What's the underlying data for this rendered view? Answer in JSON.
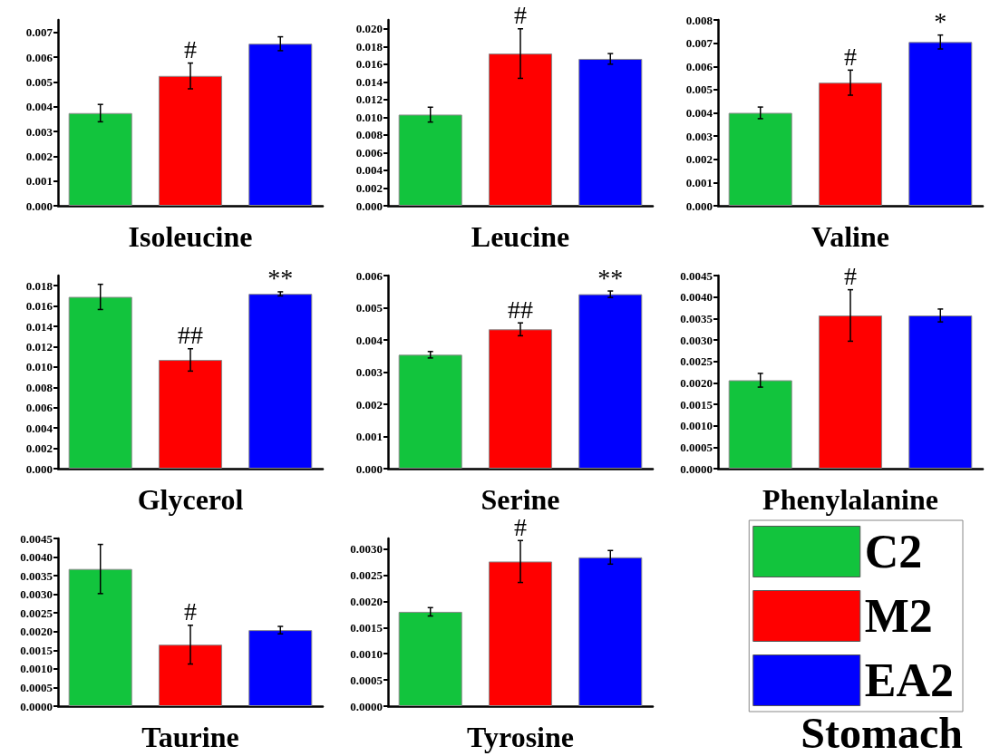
{
  "chart_data": [
    {
      "type": "bar",
      "xlabel": "Isoleucine",
      "categories": [
        null
      ],
      "legend": false,
      "ylim": [
        0,
        0.0075
      ],
      "yticks": [
        {
          "value": 0,
          "label": "0.000"
        },
        {
          "value": 0.001,
          "label": "0.001"
        },
        {
          "value": 0.002,
          "label": "0.002"
        },
        {
          "value": 0.003,
          "label": "0.003"
        },
        {
          "value": 0.004,
          "label": "0.004"
        },
        {
          "value": 0.005,
          "label": "0.005"
        },
        {
          "value": 0.006,
          "label": "0.006"
        },
        {
          "value": 0.007,
          "label": "0.007"
        }
      ],
      "series": [
        {
          "color": "#12c43d",
          "values": [
            0.00374
          ],
          "errors": [
            0.00035
          ]
        },
        {
          "color": "#ff0000",
          "values": [
            0.00524
          ],
          "errors": [
            0.00052
          ],
          "value_labels": [
            "#"
          ]
        },
        {
          "color": "#0000ff",
          "values": [
            0.00654
          ],
          "errors": [
            0.00028
          ]
        }
      ]
    },
    {
      "type": "bar",
      "xlabel": "Leucine",
      "categories": [
        null
      ],
      "legend": false,
      "ylim": [
        0,
        0.021
      ],
      "yticks": [
        {
          "value": 0,
          "label": "0.000"
        },
        {
          "value": 0.002,
          "label": "0.002"
        },
        {
          "value": 0.004,
          "label": "0.004"
        },
        {
          "value": 0.006,
          "label": "0.006"
        },
        {
          "value": 0.008,
          "label": "0.008"
        },
        {
          "value": 0.01,
          "label": "0.010"
        },
        {
          "value": 0.012,
          "label": "0.012"
        },
        {
          "value": 0.014,
          "label": "0.014"
        },
        {
          "value": 0.016,
          "label": "0.016"
        },
        {
          "value": 0.018,
          "label": "0.018"
        },
        {
          "value": 0.02,
          "label": "0.020"
        }
      ],
      "series": [
        {
          "color": "#12c43d",
          "values": [
            0.0103
          ],
          "errors": [
            0.00084
          ]
        },
        {
          "color": "#ff0000",
          "values": [
            0.0172
          ],
          "errors": [
            0.0028
          ],
          "value_labels": [
            "#"
          ]
        },
        {
          "color": "#0000ff",
          "values": [
            0.0166
          ],
          "errors": [
            0.0006
          ]
        }
      ]
    },
    {
      "type": "bar",
      "xlabel": "Valine",
      "categories": [
        null
      ],
      "legend": false,
      "ylim": [
        0,
        0.008
      ],
      "yticks": [
        {
          "value": 0,
          "label": "0.000"
        },
        {
          "value": 0.001,
          "label": "0.001"
        },
        {
          "value": 0.002,
          "label": "0.002"
        },
        {
          "value": 0.003,
          "label": "0.003"
        },
        {
          "value": 0.004,
          "label": "0.004"
        },
        {
          "value": 0.005,
          "label": "0.005"
        },
        {
          "value": 0.006,
          "label": "0.006"
        },
        {
          "value": 0.007,
          "label": "0.007"
        },
        {
          "value": 0.008,
          "label": "0.008"
        }
      ],
      "series": [
        {
          "color": "#12c43d",
          "values": [
            0.004
          ],
          "errors": [
            0.00025
          ]
        },
        {
          "color": "#ff0000",
          "values": [
            0.0053
          ],
          "errors": [
            0.00054
          ],
          "value_labels": [
            "#"
          ]
        },
        {
          "color": "#0000ff",
          "values": [
            0.00705
          ],
          "errors": [
            0.0003
          ],
          "value_labels": [
            "*"
          ]
        }
      ]
    },
    {
      "type": "bar",
      "xlabel": "Glycerol",
      "categories": [
        null
      ],
      "legend": false,
      "ylim": [
        0,
        0.019
      ],
      "yticks": [
        {
          "value": 0,
          "label": "0.000"
        },
        {
          "value": 0.002,
          "label": "0.002"
        },
        {
          "value": 0.004,
          "label": "0.004"
        },
        {
          "value": 0.006,
          "label": "0.006"
        },
        {
          "value": 0.008,
          "label": "0.008"
        },
        {
          "value": 0.01,
          "label": "0.010"
        },
        {
          "value": 0.012,
          "label": "0.012"
        },
        {
          "value": 0.014,
          "label": "0.014"
        },
        {
          "value": 0.016,
          "label": "0.016"
        },
        {
          "value": 0.018,
          "label": "0.018"
        }
      ],
      "series": [
        {
          "color": "#12c43d",
          "values": [
            0.0169
          ],
          "errors": [
            0.00124
          ]
        },
        {
          "color": "#ff0000",
          "values": [
            0.0107
          ],
          "errors": [
            0.0011
          ],
          "value_labels": [
            "##"
          ]
        },
        {
          "color": "#0000ff",
          "values": [
            0.0172
          ],
          "errors": [
            0.0002
          ],
          "value_labels": [
            "**"
          ]
        }
      ]
    },
    {
      "type": "bar",
      "xlabel": "Serine",
      "categories": [
        null
      ],
      "legend": false,
      "ylim": [
        0,
        0.006
      ],
      "yticks": [
        {
          "value": 0,
          "label": "0.000"
        },
        {
          "value": 0.001,
          "label": "0.001"
        },
        {
          "value": 0.002,
          "label": "0.002"
        },
        {
          "value": 0.003,
          "label": "0.003"
        },
        {
          "value": 0.004,
          "label": "0.004"
        },
        {
          "value": 0.005,
          "label": "0.005"
        },
        {
          "value": 0.006,
          "label": "0.006"
        }
      ],
      "series": [
        {
          "color": "#12c43d",
          "values": [
            0.00354
          ],
          "errors": [
            0.0001
          ]
        },
        {
          "color": "#ff0000",
          "values": [
            0.00433
          ],
          "errors": [
            0.0002
          ],
          "value_labels": [
            "##"
          ]
        },
        {
          "color": "#0000ff",
          "values": [
            0.00542
          ],
          "errors": [
            0.0001
          ],
          "value_labels": [
            "**"
          ]
        }
      ]
    },
    {
      "type": "bar",
      "xlabel": "Phenylalanine",
      "categories": [
        null
      ],
      "legend": false,
      "ylim": [
        0,
        0.0045
      ],
      "yticks": [
        {
          "value": 0,
          "label": "0.0000"
        },
        {
          "value": 0.0005,
          "label": "0.0005"
        },
        {
          "value": 0.001,
          "label": "0.0010"
        },
        {
          "value": 0.0015,
          "label": "0.0015"
        },
        {
          "value": 0.002,
          "label": "0.0020"
        },
        {
          "value": 0.0025,
          "label": "0.0025"
        },
        {
          "value": 0.003,
          "label": "0.0030"
        },
        {
          "value": 0.0035,
          "label": "0.0035"
        },
        {
          "value": 0.004,
          "label": "0.0040"
        },
        {
          "value": 0.0045,
          "label": "0.0045"
        }
      ],
      "series": [
        {
          "color": "#12c43d",
          "values": [
            0.00206
          ],
          "errors": [
            0.00016
          ]
        },
        {
          "color": "#ff0000",
          "values": [
            0.00357
          ],
          "errors": [
            0.0006
          ],
          "value_labels": [
            "#"
          ]
        },
        {
          "color": "#0000ff",
          "values": [
            0.00357
          ],
          "errors": [
            0.00015
          ]
        }
      ]
    },
    {
      "type": "bar",
      "xlabel": "Taurine",
      "categories": [
        null
      ],
      "legend": false,
      "ylim": [
        0,
        0.0045
      ],
      "yticks": [
        {
          "value": 0,
          "label": "0.0000"
        },
        {
          "value": 0.0005,
          "label": "0.0005"
        },
        {
          "value": 0.001,
          "label": "0.0010"
        },
        {
          "value": 0.0015,
          "label": "0.0015"
        },
        {
          "value": 0.002,
          "label": "0.0020"
        },
        {
          "value": 0.0025,
          "label": "0.0025"
        },
        {
          "value": 0.003,
          "label": "0.0030"
        },
        {
          "value": 0.0035,
          "label": "0.0035"
        },
        {
          "value": 0.004,
          "label": "0.0040"
        },
        {
          "value": 0.0045,
          "label": "0.0045"
        }
      ],
      "series": [
        {
          "color": "#12c43d",
          "values": [
            0.00368
          ],
          "errors": [
            0.00066
          ]
        },
        {
          "color": "#ff0000",
          "values": [
            0.00165
          ],
          "errors": [
            0.00052
          ],
          "value_labels": [
            "#"
          ]
        },
        {
          "color": "#0000ff",
          "values": [
            0.00204
          ],
          "errors": [
            0.0001
          ]
        }
      ]
    },
    {
      "type": "bar",
      "xlabel": "Tyrosine",
      "categories": [
        null
      ],
      "legend": "right",
      "annotations": [
        "Stomach"
      ],
      "ylim": [
        0,
        0.0032
      ],
      "yticks": [
        {
          "value": 0,
          "label": "0.0000"
        },
        {
          "value": 0.0005,
          "label": "0.0005"
        },
        {
          "value": 0.001,
          "label": "0.0010"
        },
        {
          "value": 0.0015,
          "label": "0.0015"
        },
        {
          "value": 0.002,
          "label": "0.0020"
        },
        {
          "value": 0.0025,
          "label": "0.0025"
        },
        {
          "value": 0.003,
          "label": "0.0030"
        }
      ],
      "series": [
        {
          "name": "C2",
          "color": "#12c43d",
          "values": [
            0.0018
          ],
          "errors": [
            8e-05
          ]
        },
        {
          "name": "M2",
          "color": "#ff0000",
          "values": [
            0.00276
          ],
          "errors": [
            0.0004
          ],
          "value_labels": [
            "#"
          ]
        },
        {
          "name": "EA2",
          "color": "#0000ff",
          "values": [
            0.00284
          ],
          "errors": [
            0.00013
          ]
        }
      ]
    }
  ]
}
